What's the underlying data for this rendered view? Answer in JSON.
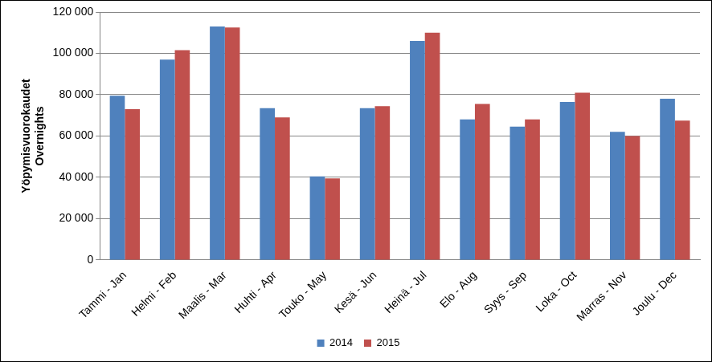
{
  "chart_data": {
    "type": "bar",
    "y_label": [
      "Yöpymisvuorokaudet",
      "Overnights"
    ],
    "categories": [
      "Tammi - Jan",
      "Helmi - Feb",
      "Maalis - Mar",
      "Huhti - Apr",
      "Touko - May",
      "Kesä - Jun",
      "Heinä - Jul",
      "Elo - Aug",
      "Syys - Sep",
      "Loka - Oct",
      "Marras - Nov",
      "Joulu - Dec"
    ],
    "series": [
      {
        "name": "2014",
        "color": "#4F81BD",
        "values": [
          79500,
          97000,
          113000,
          73500,
          40500,
          73500,
          106000,
          68000,
          64500,
          76500,
          62000,
          78000
        ]
      },
      {
        "name": "2015",
        "color": "#C0504D",
        "values": [
          73000,
          101500,
          112500,
          69000,
          39500,
          74500,
          110000,
          75500,
          68000,
          81000,
          60000,
          67500
        ]
      }
    ],
    "ylim": [
      0,
      120000
    ],
    "yticks": [
      0,
      {
        "value": 20000,
        "label": "20 000"
      },
      {
        "value": 40000,
        "label": "40 000"
      },
      {
        "value": 60000,
        "label": "60 000"
      },
      {
        "value": 80000,
        "label": "80 000"
      },
      {
        "value": 100000,
        "label": "100 000"
      },
      {
        "value": 120000,
        "label": "120 000"
      }
    ],
    "grid": true,
    "legend": "bottom"
  }
}
